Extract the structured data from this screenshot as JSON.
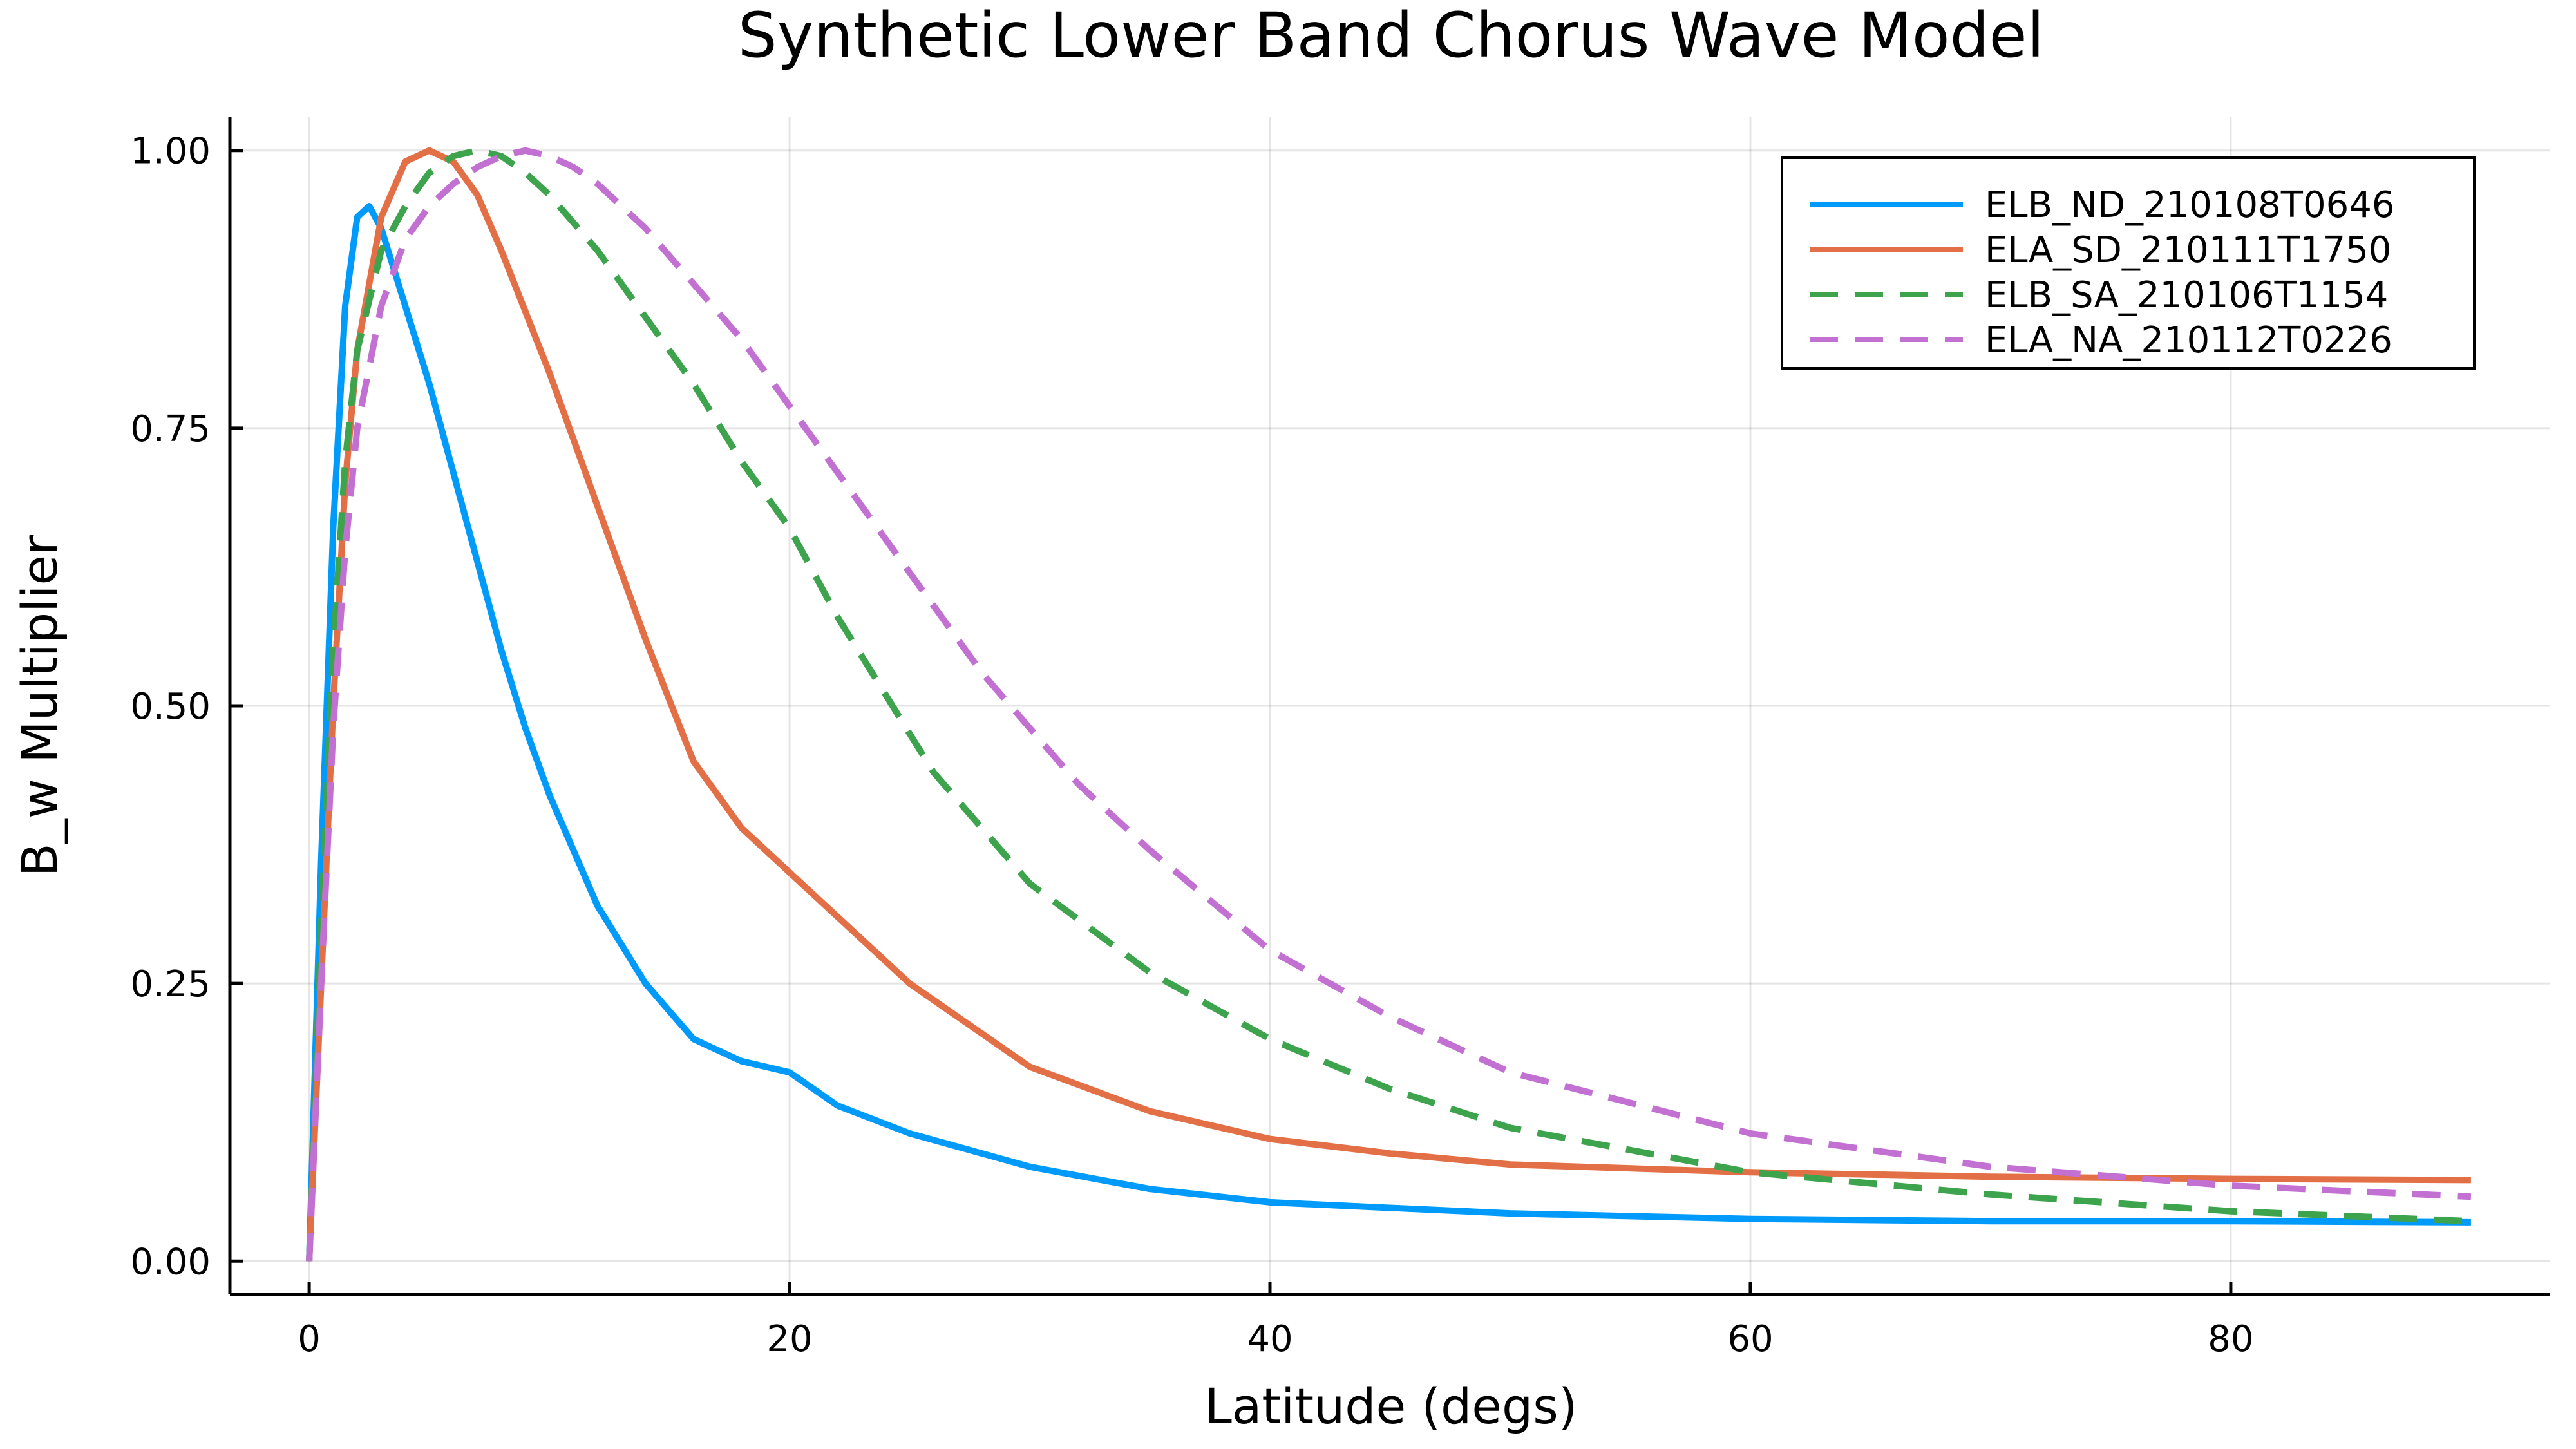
{
  "chart_data": {
    "type": "line",
    "title": "Synthetic Lower Band Chorus Wave Model",
    "xlabel": "Latitude (degs)",
    "ylabel": "B_w Multiplier",
    "xlim": [
      -3.3,
      93.3
    ],
    "ylim": [
      -0.03,
      1.03
    ],
    "xticks": [
      0,
      20,
      40,
      60,
      80
    ],
    "xtick_labels": [
      "0",
      "20",
      "40",
      "60",
      "80"
    ],
    "yticks": [
      0,
      0.25,
      0.5,
      0.75,
      1.0
    ],
    "ytick_labels": [
      "0.00",
      "0.25",
      "0.50",
      "0.75",
      "1.00"
    ],
    "grid": true,
    "legend_position": "top-right",
    "series": [
      {
        "name": "ELB_ND_210108T0646",
        "color": "#009AFA",
        "dash": "solid",
        "x": [
          0,
          0.5,
          1,
          1.5,
          2,
          2.5,
          3,
          4,
          5,
          6,
          7,
          8,
          9,
          10,
          12,
          14,
          16,
          18,
          20,
          22,
          25,
          30,
          35,
          40,
          50,
          60,
          70,
          80,
          90
        ],
        "y": [
          0,
          0.36,
          0.66,
          0.86,
          0.94,
          0.95,
          0.93,
          0.86,
          0.79,
          0.71,
          0.63,
          0.55,
          0.48,
          0.42,
          0.32,
          0.25,
          0.2,
          0.18,
          0.17,
          0.14,
          0.115,
          0.085,
          0.065,
          0.053,
          0.043,
          0.038,
          0.036,
          0.036,
          0.035
        ]
      },
      {
        "name": "ELA_SD_210111T1750",
        "color": "#E26F46",
        "dash": "solid",
        "x": [
          0,
          0.5,
          1,
          1.5,
          2,
          3,
          4,
          5,
          6,
          7,
          8,
          10,
          12,
          14,
          16,
          18,
          20,
          22,
          25,
          30,
          35,
          40,
          45,
          50,
          60,
          70,
          80,
          90
        ],
        "y": [
          0,
          0.25,
          0.5,
          0.7,
          0.82,
          0.94,
          0.99,
          1.0,
          0.99,
          0.96,
          0.91,
          0.8,
          0.68,
          0.56,
          0.45,
          0.39,
          0.35,
          0.31,
          0.25,
          0.175,
          0.135,
          0.11,
          0.097,
          0.087,
          0.08,
          0.076,
          0.074,
          0.073
        ]
      },
      {
        "name": "ELB_SA_210106T1154",
        "color": "#3DA44D",
        "dash": "dashed",
        "x": [
          0,
          0.5,
          1,
          1.5,
          2,
          3,
          4,
          5,
          6,
          7,
          8,
          9,
          10,
          12,
          14,
          16,
          18,
          20,
          22,
          24,
          26,
          28,
          30,
          35,
          40,
          45,
          50,
          60,
          70,
          80,
          90
        ],
        "y": [
          0,
          0.3,
          0.55,
          0.72,
          0.82,
          0.91,
          0.95,
          0.98,
          0.995,
          1.0,
          0.995,
          0.98,
          0.96,
          0.91,
          0.85,
          0.79,
          0.72,
          0.66,
          0.58,
          0.51,
          0.44,
          0.39,
          0.34,
          0.26,
          0.2,
          0.155,
          0.12,
          0.08,
          0.06,
          0.045,
          0.036
        ]
      },
      {
        "name": "ELA_NA_210112T0226",
        "color": "#C271D2",
        "dash": "dashed",
        "x": [
          0,
          0.5,
          1,
          1.5,
          2,
          3,
          4,
          5,
          6,
          7,
          8,
          9,
          10,
          11,
          12,
          14,
          16,
          18,
          20,
          22,
          24,
          26,
          28,
          30,
          32,
          35,
          40,
          45,
          50,
          60,
          70,
          80,
          90
        ],
        "y": [
          0,
          0.25,
          0.48,
          0.64,
          0.75,
          0.86,
          0.92,
          0.95,
          0.97,
          0.985,
          0.995,
          1.0,
          0.995,
          0.985,
          0.97,
          0.93,
          0.88,
          0.83,
          0.77,
          0.71,
          0.65,
          0.59,
          0.53,
          0.48,
          0.43,
          0.37,
          0.28,
          0.22,
          0.17,
          0.115,
          0.085,
          0.068,
          0.058
        ]
      }
    ]
  }
}
